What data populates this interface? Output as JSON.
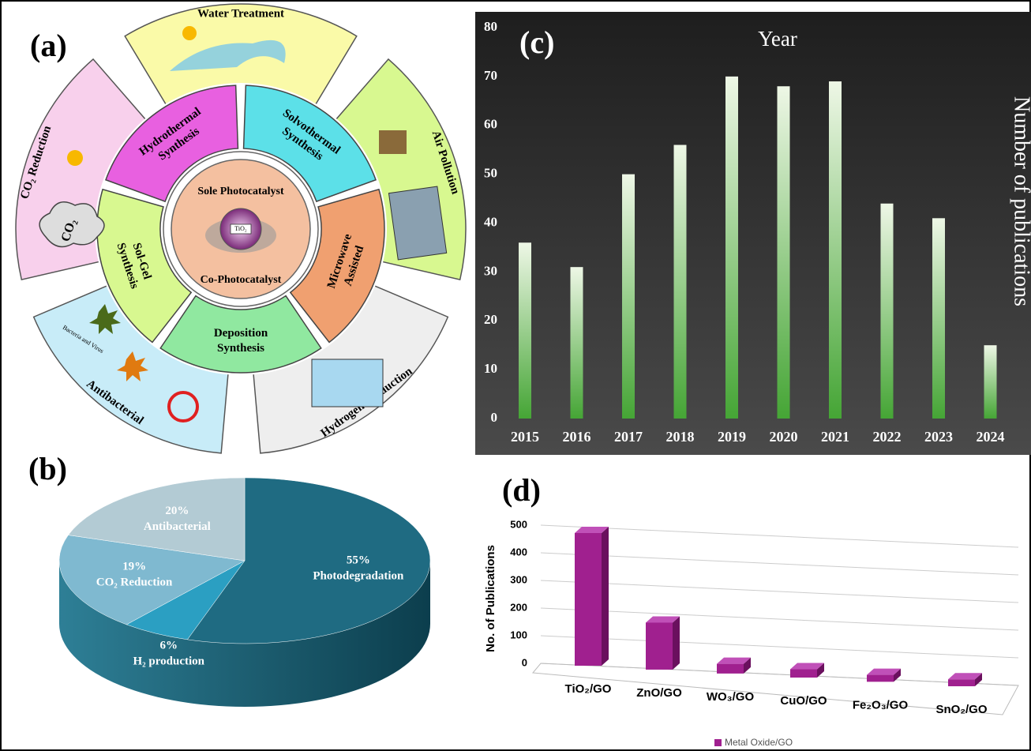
{
  "diagram": {
    "panel_label": "(a)",
    "center": {
      "top": "Sole Photocatalyst",
      "core": "TiO₂",
      "bottom": "Co-Photocatalyst"
    },
    "synthesis_methods": [
      [
        "Hydrothermal",
        "Synthesis"
      ],
      [
        "Solvothermal",
        "Synthesis"
      ],
      [
        "Microwave",
        "Assisted"
      ],
      [
        "Deposition",
        "Synthesis"
      ],
      [
        "Sol-Gel",
        "Synthesis"
      ]
    ],
    "applications": [
      "Water Treatment",
      "Air Pollution",
      "Hydrogen Production",
      "Antibacterial",
      "CO₂ Reduction"
    ],
    "icon_labels": {
      "cloud": "CO₂",
      "bacteria": "Bacteria and Virus"
    }
  },
  "chart_data": [
    {
      "type": "bar",
      "panel_label": "(c)",
      "x_label": "Year",
      "y_label": "Number of publications",
      "categories": [
        "2015",
        "2016",
        "2017",
        "2018",
        "2019",
        "2020",
        "2021",
        "2022",
        "2023",
        "2024"
      ],
      "values": [
        36,
        31,
        50,
        56,
        70,
        68,
        69,
        44,
        41,
        15
      ],
      "ylim": [
        0,
        80
      ],
      "yticks": [
        0,
        10,
        20,
        30,
        40,
        50,
        60,
        70,
        80
      ],
      "grid": false,
      "color": "#4aa83a"
    },
    {
      "type": "pie",
      "panel_label": "(b)",
      "categories": [
        "Photodegradation",
        "H₂ production",
        "CO₂ Reduction",
        "Antibacterial"
      ],
      "values": [
        55,
        6,
        19,
        20
      ],
      "value_labels": [
        "55%",
        "6%",
        "19%",
        "20%"
      ],
      "colors": [
        "#1f6b82",
        "#2b9fc2",
        "#7fb9d0",
        "#b3cbd4"
      ]
    },
    {
      "type": "bar3d",
      "panel_label": "(d)",
      "y_label": "No. of Publications",
      "categories": [
        "TiO₂/GO",
        "ZnO/GO",
        "WO₃/GO",
        "CuO/GO",
        "Fe₂O₃/GO",
        "SnO₂/GO"
      ],
      "series": [
        {
          "name": "Metal Oxide/GO",
          "color": "#a0208f",
          "values": [
            480,
            170,
            35,
            30,
            25,
            25
          ]
        }
      ],
      "ylim": [
        0,
        500
      ],
      "yticks": [
        0,
        100,
        200,
        300,
        400,
        500
      ],
      "grid": true,
      "legend": "bottom"
    }
  ]
}
